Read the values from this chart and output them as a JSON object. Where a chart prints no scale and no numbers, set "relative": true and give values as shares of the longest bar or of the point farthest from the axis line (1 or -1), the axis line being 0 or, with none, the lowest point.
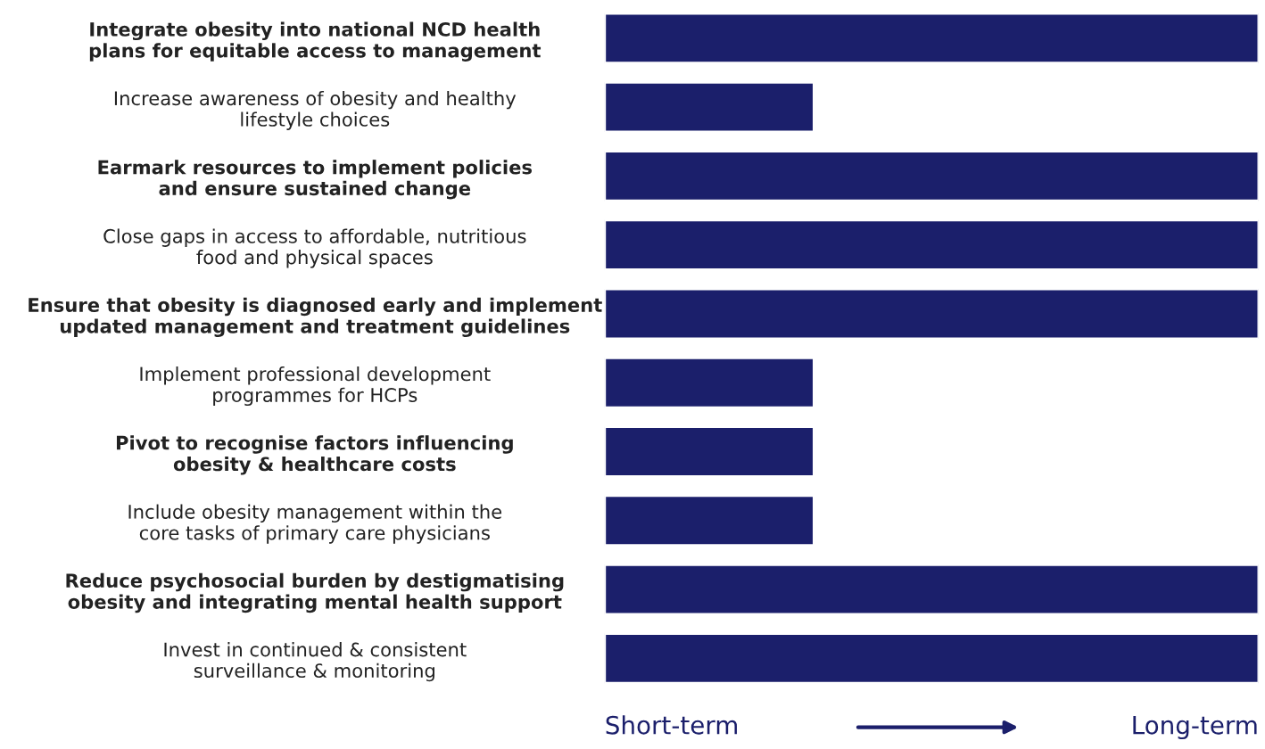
{
  "chart_data": {
    "type": "bar",
    "orientation": "horizontal",
    "relative": true,
    "categories": [
      "Integrate obesity into national NCD health\nplans for equitable access to management",
      "Increase awareness of obesity and healthy\nlifestyle choices",
      "Earmark resources to implement policies\nand ensure sustained change",
      "Close gaps in access to affordable, nutritious\nfood and physical spaces",
      "Ensure that obesity is diagnosed early and implement\nupdated management and treatment guidelines",
      "Implement professional development\nprogrammes for HCPs",
      "Pivot to recognise factors influencing\nobesity & healthcare costs",
      "Include obesity management within the\ncore tasks of primary care physicians",
      "Reduce psychosocial burden by destigmatising\nobesity and integrating mental health support",
      "Invest in continued & consistent\nsurveillance & monitoring"
    ],
    "values": [
      1,
      0.32,
      1,
      1,
      1,
      0.32,
      0.32,
      0.32,
      1,
      1
    ],
    "color": "#1b1f6b",
    "annotations": [
      "Short-term",
      "Long-term"
    ],
    "grid": false,
    "legend": false
  }
}
